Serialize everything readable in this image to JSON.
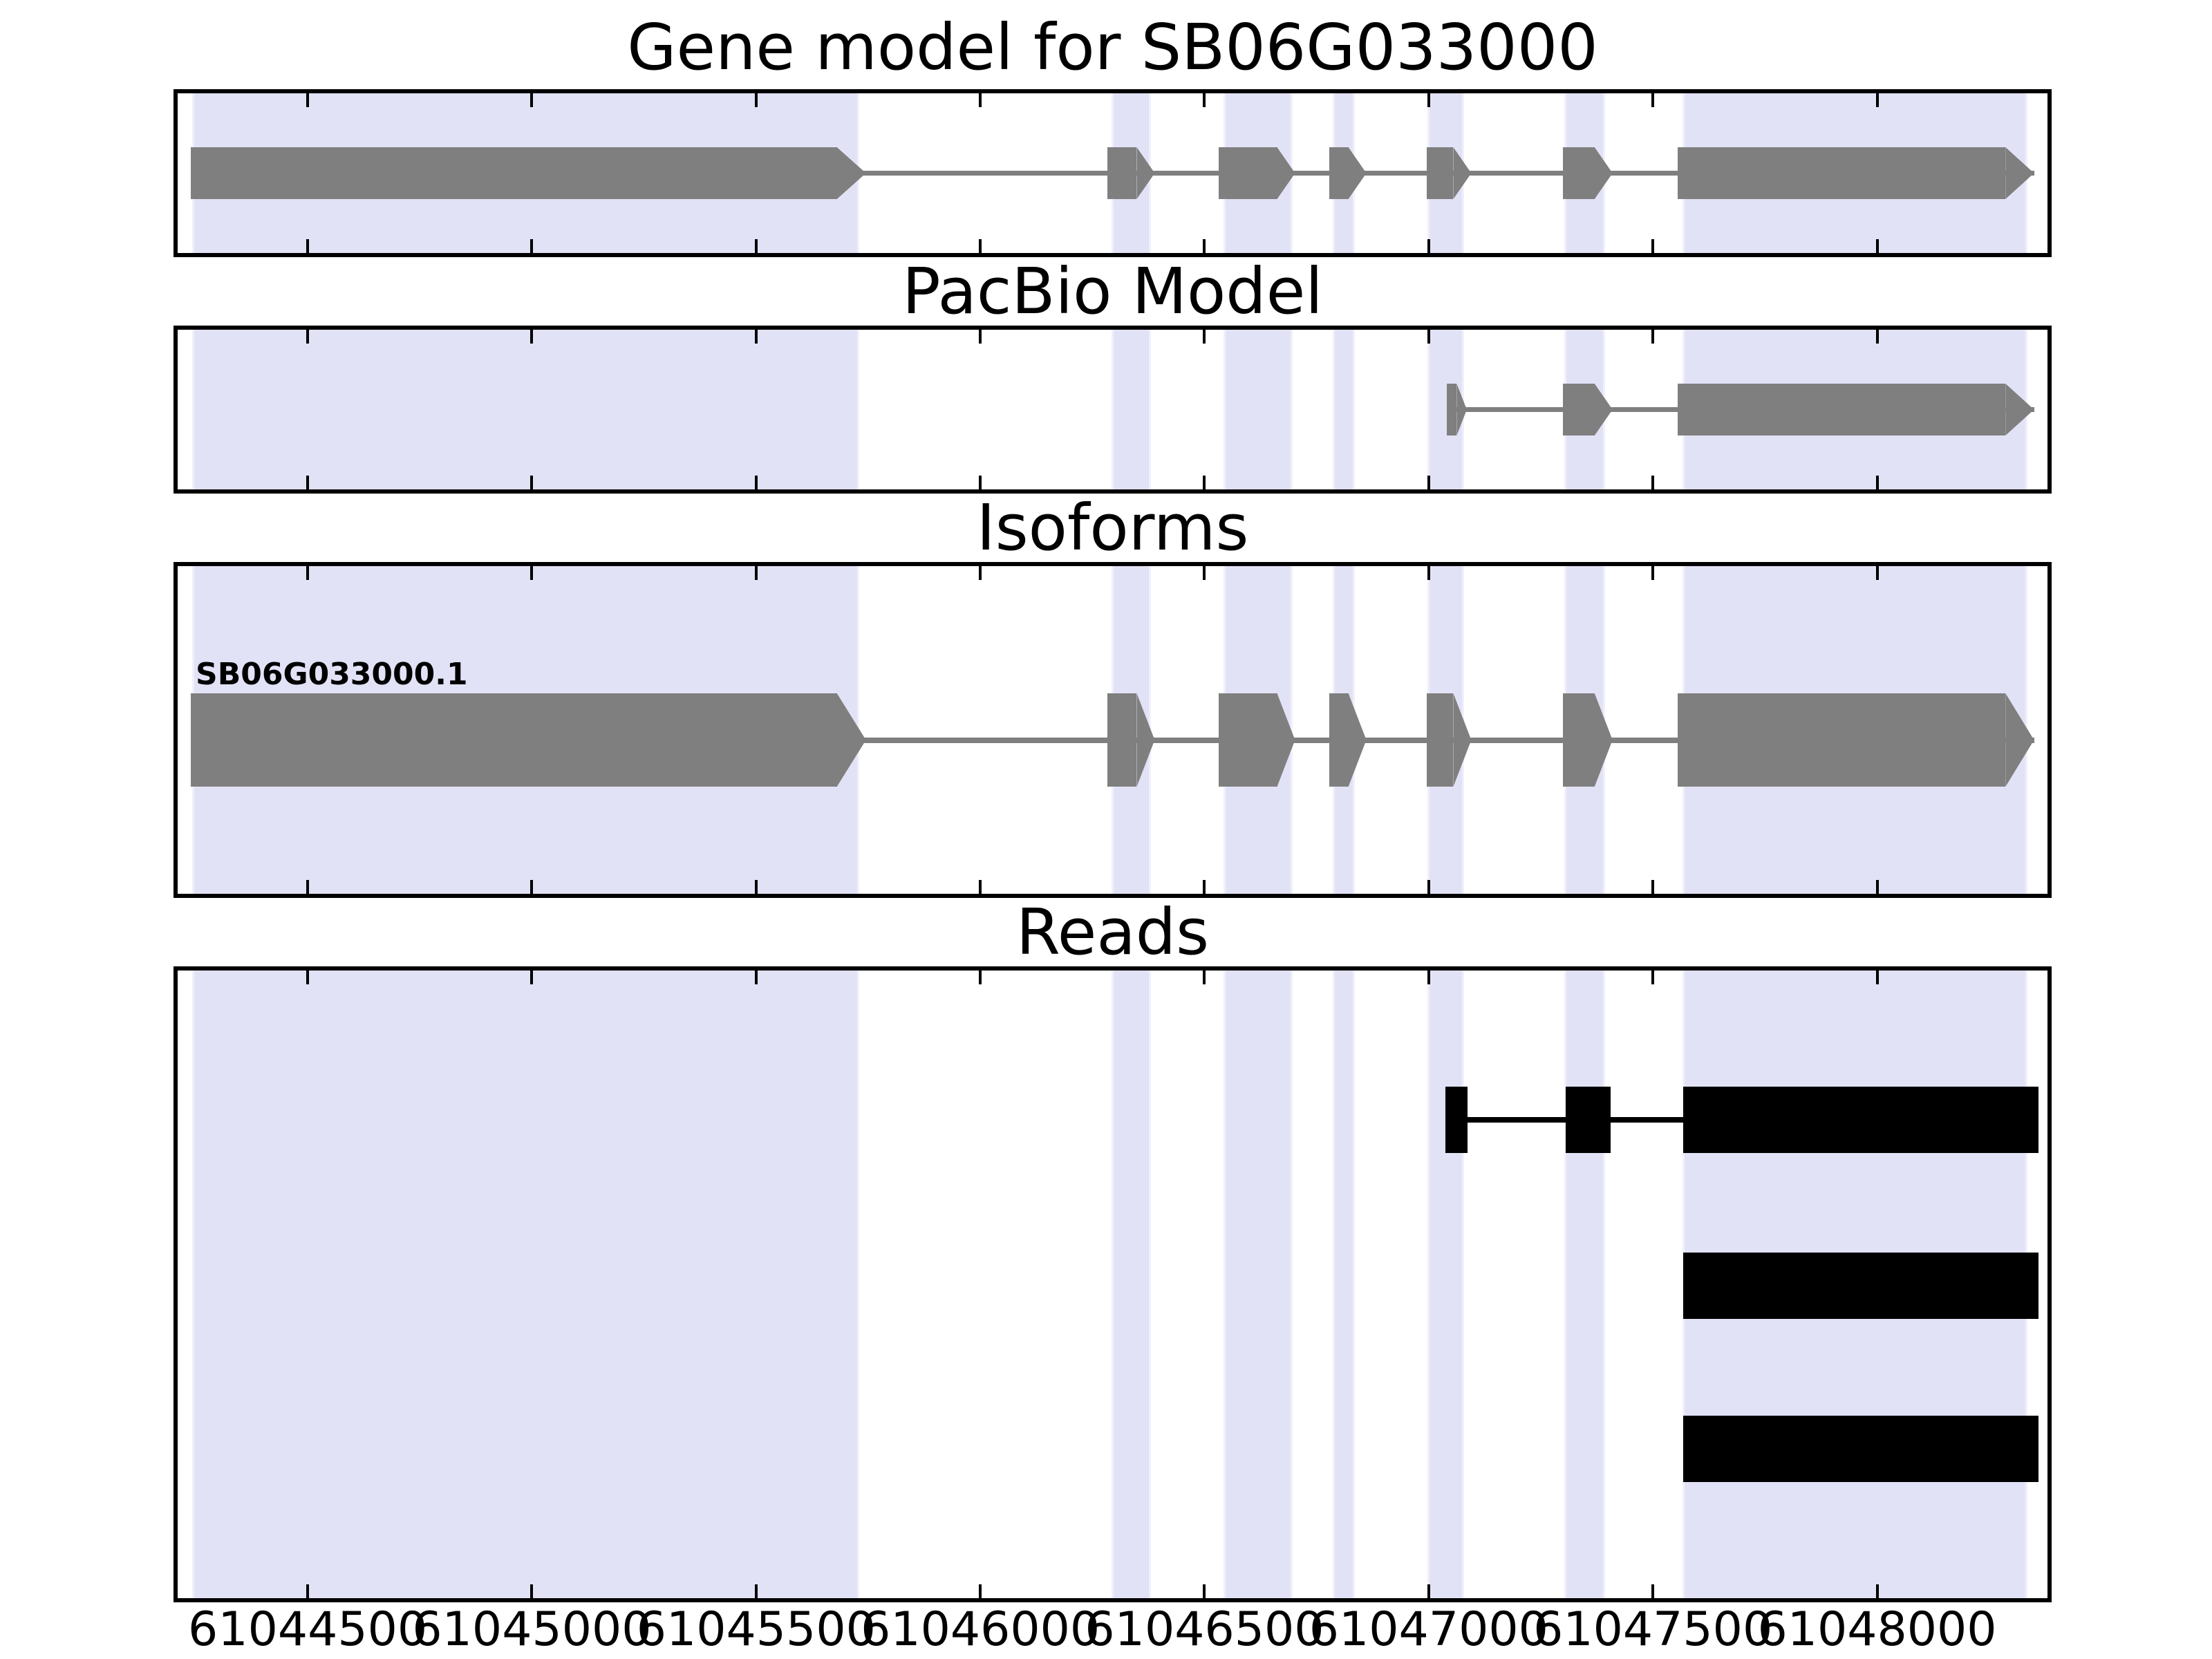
{
  "chart_data": {
    "type": "genome_tracks",
    "title": "Gene model for SB06G033000",
    "x_axis": {
      "xmin": 61044210,
      "xmax": 61048380,
      "ticks": [
        61044500,
        61045000,
        61045500,
        61046000,
        61046500,
        61047000,
        61047500,
        61048000
      ],
      "tick_labels": [
        "61044500",
        "61045000",
        "61045500",
        "61046000",
        "61046500",
        "61047000",
        "61047500",
        "61048000"
      ],
      "grid": false
    },
    "highlight_bands": [
      {
        "start": 61044242,
        "end": 61045730
      },
      {
        "start": 61046293,
        "end": 61046381
      },
      {
        "start": 61046543,
        "end": 61046697
      },
      {
        "start": 61046786,
        "end": 61046836
      },
      {
        "start": 61046997,
        "end": 61047079
      },
      {
        "start": 61047302,
        "end": 61047393
      },
      {
        "start": 61047566,
        "end": 61048335
      }
    ],
    "panels": [
      {
        "id": "gene",
        "title": "Gene model for SB06G033000",
        "kind": "transcript",
        "transcripts": [
          {
            "label": "",
            "strand": "+",
            "exons": [
              {
                "start": 61044240,
                "end": 61045745
              },
              {
                "start": 61046284,
                "end": 61046389
              },
              {
                "start": 61046532,
                "end": 61046702
              },
              {
                "start": 61046779,
                "end": 61046861
              },
              {
                "start": 61046995,
                "end": 61047095
              },
              {
                "start": 61047300,
                "end": 61047410
              },
              {
                "start": 61047555,
                "end": 61048350
              }
            ]
          }
        ]
      },
      {
        "id": "pacbio",
        "title": "PacBio Model",
        "kind": "transcript",
        "transcripts": [
          {
            "label": "",
            "strand": "+",
            "exons": [
              {
                "start": 61047040,
                "end": 61047085
              },
              {
                "start": 61047300,
                "end": 61047410
              },
              {
                "start": 61047555,
                "end": 61048350
              }
            ]
          }
        ]
      },
      {
        "id": "isoforms",
        "title": "Isoforms",
        "kind": "transcript",
        "transcripts": [
          {
            "label": "SB06G033000.1",
            "strand": "+",
            "exons": [
              {
                "start": 61044240,
                "end": 61045745
              },
              {
                "start": 61046284,
                "end": 61046389
              },
              {
                "start": 61046532,
                "end": 61046702
              },
              {
                "start": 61046779,
                "end": 61046861
              },
              {
                "start": 61046995,
                "end": 61047095
              },
              {
                "start": 61047300,
                "end": 61047410
              },
              {
                "start": 61047555,
                "end": 61048350
              }
            ]
          }
        ]
      },
      {
        "id": "reads",
        "title": "Reads",
        "kind": "reads",
        "reads": [
          {
            "segments": [
              [
                61047038,
                61047087
              ],
              [
                61047306,
                61047405
              ],
              [
                61047568,
                61048360
              ]
            ]
          },
          {
            "segments": [
              [
                61047568,
                61048360
              ]
            ]
          },
          {
            "segments": [
              [
                61047568,
                61048360
              ]
            ]
          }
        ]
      }
    ],
    "colors": {
      "highlight_band": "#e2e2f7",
      "highlight_band_edge": "#f0f0fb",
      "exon": "#7f7f7f",
      "intron_line": "#7f7f7f",
      "read": "#000000",
      "frame": "#000000",
      "text": "#000000",
      "background": "#ffffff"
    }
  }
}
